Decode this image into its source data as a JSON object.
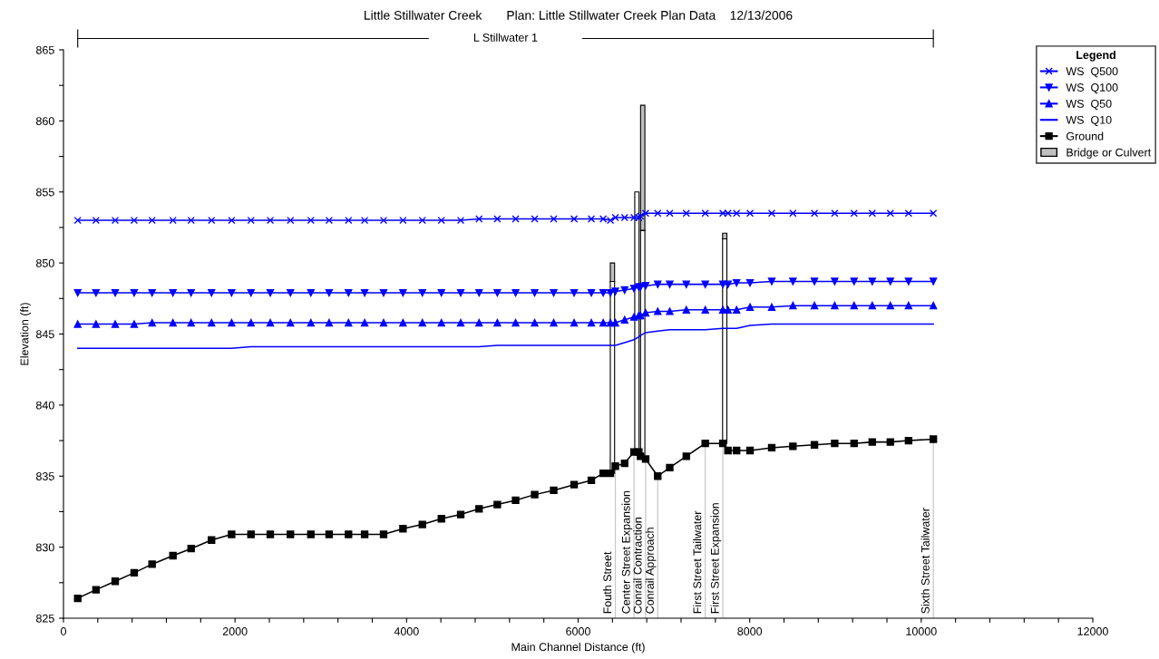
{
  "chart_data": {
    "type": "line",
    "title": "Little Stillwater Creek       Plan: Little Stillwater Creek Plan Data    12/13/2006",
    "xlabel": "Main Channel Distance (ft)",
    "ylabel": "Elevation (ft)",
    "legend_title": "Legend",
    "x": [
      166,
      379,
      603,
      824,
      1033,
      1276,
      1488,
      1726,
      1960,
      2186,
      2411,
      2646,
      2884,
      3097,
      3323,
      3511,
      3732,
      3958,
      4184,
      4406,
      4631,
      4845,
      5058,
      5271,
      5493,
      5715,
      5953,
      6154,
      6292,
      6376,
      6434,
      6542,
      6651,
      6707,
      6727,
      6787,
      6928,
      7068,
      7261,
      7482,
      7687,
      7747,
      7847,
      8004,
      8257,
      8504,
      8755,
      8991,
      9217,
      9429,
      9640,
      9852,
      10141
    ],
    "series": [
      {
        "name": "WS  Q500",
        "color": "#0000ff",
        "marker": "cross",
        "values": [
          853.0,
          853.0,
          853.0,
          853.0,
          853.0,
          853.0,
          853.0,
          853.0,
          853.0,
          853.0,
          853.0,
          853.0,
          853.0,
          853.0,
          853.0,
          853.0,
          853.0,
          853.0,
          853.0,
          853.0,
          853.0,
          853.1,
          853.1,
          853.1,
          853.1,
          853.1,
          853.1,
          853.1,
          853.1,
          853.0,
          853.2,
          853.2,
          853.2,
          853.2,
          853.3,
          853.5,
          853.5,
          853.5,
          853.5,
          853.5,
          853.5,
          853.5,
          853.5,
          853.5,
          853.5,
          853.5,
          853.5,
          853.5,
          853.5,
          853.5,
          853.5,
          853.5,
          853.5
        ]
      },
      {
        "name": "WS  Q100",
        "color": "#0000ff",
        "marker": "triangle_down",
        "values": [
          847.9,
          847.9,
          847.9,
          847.9,
          847.9,
          847.9,
          847.9,
          847.9,
          847.9,
          847.9,
          847.9,
          847.9,
          847.9,
          847.9,
          847.9,
          847.9,
          847.9,
          847.9,
          847.9,
          847.9,
          847.9,
          847.9,
          847.9,
          847.9,
          847.9,
          847.9,
          847.9,
          847.9,
          847.9,
          847.9,
          848.0,
          848.1,
          848.2,
          848.3,
          848.3,
          848.4,
          848.5,
          848.5,
          848.5,
          848.5,
          848.5,
          848.5,
          848.6,
          848.6,
          848.7,
          848.7,
          848.7,
          848.7,
          848.7,
          848.7,
          848.7,
          848.7,
          848.7
        ]
      },
      {
        "name": "WS  Q50",
        "color": "#0000ff",
        "marker": "triangle",
        "values": [
          845.7,
          845.7,
          845.7,
          845.7,
          845.8,
          845.8,
          845.8,
          845.8,
          845.8,
          845.8,
          845.8,
          845.8,
          845.8,
          845.8,
          845.8,
          845.8,
          845.8,
          845.8,
          845.8,
          845.8,
          845.8,
          845.8,
          845.8,
          845.8,
          845.8,
          845.8,
          845.8,
          845.8,
          845.8,
          845.8,
          845.8,
          846.0,
          846.2,
          846.3,
          846.3,
          846.5,
          846.6,
          846.6,
          846.7,
          846.7,
          846.7,
          846.7,
          846.7,
          846.9,
          846.9,
          847.0,
          847.0,
          847.0,
          847.0,
          847.0,
          847.0,
          847.0,
          847.0
        ]
      },
      {
        "name": "WS  Q10",
        "color": "#0000ff",
        "marker": "none",
        "values": [
          844.0,
          844.0,
          844.0,
          844.0,
          844.0,
          844.0,
          844.0,
          844.0,
          844.0,
          844.1,
          844.1,
          844.1,
          844.1,
          844.1,
          844.1,
          844.1,
          844.1,
          844.1,
          844.1,
          844.1,
          844.1,
          844.1,
          844.2,
          844.2,
          844.2,
          844.2,
          844.2,
          844.2,
          844.2,
          844.2,
          844.2,
          844.4,
          844.6,
          844.8,
          844.9,
          845.1,
          845.2,
          845.3,
          845.3,
          845.3,
          845.4,
          845.4,
          845.4,
          845.6,
          845.7,
          845.7,
          845.7,
          845.7,
          845.7,
          845.7,
          845.7,
          845.7,
          845.7
        ]
      },
      {
        "name": "Ground",
        "color": "#000000",
        "marker": "square",
        "values": [
          826.4,
          827.0,
          827.6,
          828.2,
          828.8,
          829.4,
          829.9,
          830.5,
          830.9,
          830.9,
          830.9,
          830.9,
          830.9,
          830.9,
          830.9,
          830.9,
          830.9,
          831.3,
          831.6,
          832.0,
          832.3,
          832.7,
          833.0,
          833.3,
          833.7,
          834.0,
          834.4,
          834.7,
          835.2,
          835.2,
          835.7,
          835.9,
          836.7,
          836.7,
          836.4,
          836.2,
          835.0,
          835.6,
          836.4,
          837.3,
          837.3,
          836.8,
          836.8,
          836.8,
          837.0,
          837.1,
          837.2,
          837.3,
          837.3,
          837.4,
          837.4,
          837.5,
          837.6
        ]
      },
      {
        "type": "bar",
        "color": "#ffffff",
        "x": [
          6400,
          6685,
          6753,
          7709
        ],
        "base": [
          835.2,
          836.7,
          836.5,
          837.3
        ],
        "values": [
          13.5,
          18.3,
          15.8,
          14.4
        ]
      },
      {
        "type": "bar",
        "name": "Bridge or Culvert",
        "color": "#c0c0c0",
        "x": [
          6400,
          6685,
          6753,
          7709
        ],
        "base": [
          848.7,
          null,
          852.3,
          851.7
        ],
        "values": [
          1.3,
          null,
          8.8,
          0.4
        ]
      }
    ],
    "annotations": [
      "L Stillwater 1",
      {
        "text": "Fouth Street",
        "x": 6434,
        "y": 835.7
      },
      {
        "text": "Center Street Expansion",
        "x": 6651,
        "y": 836.7
      },
      {
        "text": "Conrail Contraction",
        "x": 6787,
        "y": 836.2
      },
      {
        "text": "Conrail Approach",
        "x": 6928,
        "y": 835.0
      },
      {
        "text": "First Street Tailwater",
        "x": 7482,
        "y": 837.3
      },
      {
        "text": "First Street Expansion",
        "x": 7687,
        "y": 837.3
      },
      {
        "text": "Sixth Street Tailwater",
        "x": 10141,
        "y": 837.6
      }
    ],
    "xlim": [
      0,
      12000
    ],
    "xticks": [
      0,
      {
        "value": 400,
        "label": null
      },
      {
        "value": 800,
        "label": null
      },
      {
        "value": 1200,
        "label": null
      },
      {
        "value": 1600,
        "label": null
      },
      2000,
      {
        "value": 2400,
        "label": null
      },
      {
        "value": 2800,
        "label": null
      },
      {
        "value": 3200,
        "label": null
      },
      {
        "value": 3600,
        "label": null
      },
      4000,
      {
        "value": 4400,
        "label": null
      },
      {
        "value": 4800,
        "label": null
      },
      {
        "value": 5200,
        "label": null
      },
      {
        "value": 5600,
        "label": null
      },
      6000,
      {
        "value": 6400,
        "label": null
      },
      {
        "value": 6800,
        "label": null
      },
      {
        "value": 7200,
        "label": null
      },
      {
        "value": 7600,
        "label": null
      },
      8000,
      {
        "value": 8400,
        "label": null
      },
      {
        "value": 8800,
        "label": null
      },
      {
        "value": 9200,
        "label": null
      },
      {
        "value": 9600,
        "label": null
      },
      10000,
      {
        "value": 10400,
        "label": null
      },
      {
        "value": 10800,
        "label": null
      },
      {
        "value": 11200,
        "label": null
      },
      {
        "value": 11600,
        "label": null
      },
      12000
    ],
    "ylim": [
      825,
      865
    ],
    "yticks": [
      825,
      {
        "value": 827.5,
        "label": null
      },
      830,
      {
        "value": 832.5,
        "label": null
      },
      835,
      {
        "value": 837.5,
        "label": null
      },
      840,
      {
        "value": 842.5,
        "label": null
      },
      845,
      {
        "value": 847.5,
        "label": null
      },
      850,
      {
        "value": 852.5,
        "label": null
      },
      855,
      {
        "value": 857.5,
        "label": null
      },
      860,
      {
        "value": 862.5,
        "label": null
      },
      865
    ],
    "legend": "top right",
    "grid": false,
    "line_style": "solid"
  }
}
